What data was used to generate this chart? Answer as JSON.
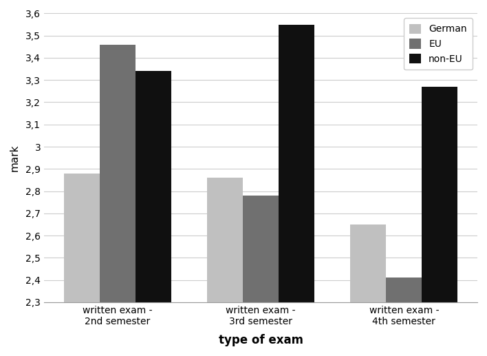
{
  "categories": [
    "written exam -\n2nd semester",
    "written exam -\n3rd semester",
    "written exam -\n4th semester"
  ],
  "series": {
    "German": [
      2.88,
      2.86,
      2.65
    ],
    "EU": [
      3.46,
      2.78,
      2.41
    ],
    "non-EU": [
      3.34,
      3.55,
      3.27
    ]
  },
  "colors": {
    "German": "#c0c0c0",
    "EU": "#707070",
    "non-EU": "#101010"
  },
  "ylabel": "mark",
  "xlabel": "type of exam",
  "ylim": [
    2.3,
    3.6
  ],
  "ybase": 2.3,
  "yticks": [
    2.3,
    2.4,
    2.5,
    2.6,
    2.7,
    2.8,
    2.9,
    3.0,
    3.1,
    3.2,
    3.3,
    3.4,
    3.5,
    3.6
  ],
  "ytick_labels": [
    "2,3",
    "2,4",
    "2,5",
    "2,6",
    "2,7",
    "2,8",
    "2,9",
    "3",
    "3,1",
    "3,2",
    "3,3",
    "3,4",
    "3,5",
    "3,6"
  ],
  "bar_width": 0.25,
  "legend_labels": [
    "German",
    "EU",
    "non-EU"
  ],
  "background_color": "#ffffff",
  "grid_color": "#cccccc"
}
